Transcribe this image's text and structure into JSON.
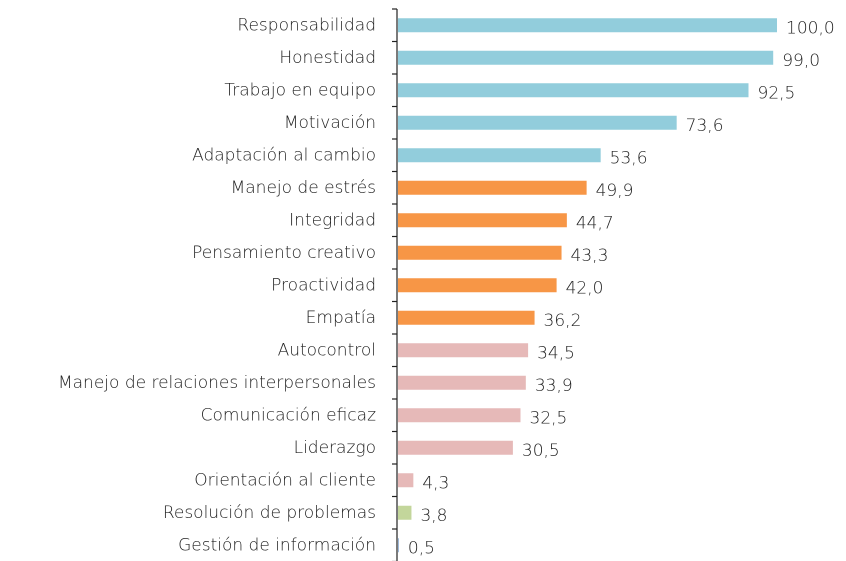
{
  "chart_data": {
    "type": "bar",
    "orientation": "horizontal",
    "categories": [
      "Responsabilidad",
      "Honestidad",
      "Trabajo en equipo",
      "Motivación",
      "Adaptación al cambio",
      "Manejo de estrés",
      "Integridad",
      "Pensamiento creativo",
      "Proactividad",
      "Empatía",
      "Autocontrol",
      "Manejo de relaciones interpersonales",
      "Comunicación eficaz",
      "Liderazgo",
      "Orientación al cliente",
      "Resolución de problemas",
      "Gestión de información"
    ],
    "values": [
      100.0,
      99.0,
      92.5,
      73.6,
      53.6,
      49.9,
      44.7,
      43.3,
      42.0,
      36.2,
      34.5,
      33.9,
      32.5,
      30.5,
      4.3,
      3.8,
      0.5
    ],
    "value_labels": [
      "100,0",
      "99,0",
      "92,5",
      "73,6",
      "53,6",
      "49,9",
      "44,7",
      "43,3",
      "42,0",
      "36,2",
      "34,5",
      "33,9",
      "32,5",
      "30,5",
      "4,3",
      "3,8",
      "0,5"
    ],
    "colors": [
      "#92cddc",
      "#92cddc",
      "#92cddc",
      "#92cddc",
      "#92cddc",
      "#f79646",
      "#f79646",
      "#f79646",
      "#f79646",
      "#f79646",
      "#e6b9b8",
      "#e6b9b8",
      "#e6b9b8",
      "#e6b9b8",
      "#e6b9b8",
      "#c3d69b",
      "#95b3d7"
    ]
  }
}
